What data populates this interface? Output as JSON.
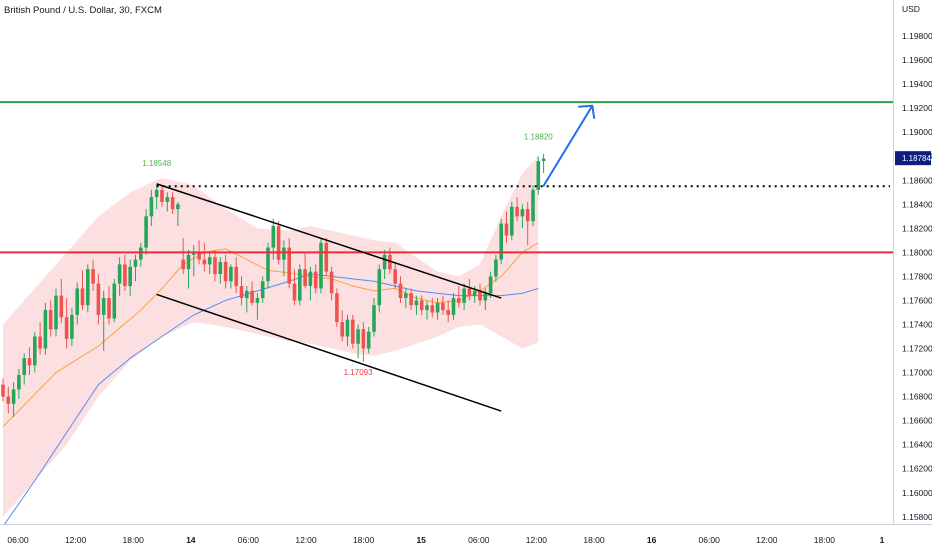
{
  "header": {
    "title": "British Pound / U.S. Dollar, 30, FXCM"
  },
  "colors": {
    "bull": "#26a65b",
    "bear": "#ef5350",
    "band_fill": "#fbd5d7",
    "ma_short": "#f7a440",
    "ma_long": "#4f8ef5",
    "resistance": "#2ea043",
    "support": "#e8303d",
    "arrow": "#1f6fe5",
    "price_tag": "#0d1e80"
  },
  "chart_data": {
    "type": "candlestick",
    "symbol": "British Pound / U.S. Dollar",
    "interval": "30",
    "source": "FXCM",
    "currency_label": "USD",
    "y_range": [
      1.1574,
      1.201
    ],
    "y_ticks": [
      "1.19800",
      "1.19600",
      "1.19400",
      "1.19200",
      "1.19000",
      "1.18800",
      "1.18600",
      "1.18400",
      "1.18200",
      "1.18000",
      "1.17800",
      "1.17600",
      "1.17400",
      "1.17200",
      "1.17000",
      "1.16800",
      "1.16600",
      "1.16400",
      "1.16200",
      "1.16000",
      "1.15800"
    ],
    "x_ticks": [
      "06:00",
      "12:00",
      "18:00",
      "14",
      "06:00",
      "12:00",
      "18:00",
      "15",
      "06:00",
      "12:00",
      "18:00",
      "16",
      "06:00",
      "12:00",
      "18:00",
      "1"
    ],
    "current_price": "1.18784",
    "annotations": {
      "high_label": "1.18548",
      "low_label": "1.17093",
      "last_high_label": "1.18820"
    },
    "levels": {
      "resistance": 1.1925,
      "support": 1.18,
      "breakout_dotted": 1.1855
    },
    "candles": [
      [
        1.169,
        1.1695,
        1.1676,
        1.168
      ],
      [
        1.168,
        1.1688,
        1.1666,
        1.1674
      ],
      [
        1.1674,
        1.1692,
        1.1663,
        1.1686
      ],
      [
        1.1686,
        1.1703,
        1.1678,
        1.1698
      ],
      [
        1.1698,
        1.1716,
        1.169,
        1.1712
      ],
      [
        1.1712,
        1.1721,
        1.1698,
        1.1706
      ],
      [
        1.1706,
        1.1734,
        1.17,
        1.173
      ],
      [
        1.173,
        1.1742,
        1.1715,
        1.172
      ],
      [
        1.172,
        1.1758,
        1.1715,
        1.1752
      ],
      [
        1.1752,
        1.176,
        1.173,
        1.1736
      ],
      [
        1.1736,
        1.177,
        1.173,
        1.1764
      ],
      [
        1.1764,
        1.1778,
        1.1741,
        1.1746
      ],
      [
        1.1746,
        1.1762,
        1.172,
        1.1728
      ],
      [
        1.1728,
        1.1754,
        1.1722,
        1.1748
      ],
      [
        1.1748,
        1.1775,
        1.174,
        1.177
      ],
      [
        1.177,
        1.1785,
        1.1752,
        1.1756
      ],
      [
        1.1756,
        1.179,
        1.175,
        1.1786
      ],
      [
        1.1786,
        1.1794,
        1.1768,
        1.1774
      ],
      [
        1.1774,
        1.1782,
        1.174,
        1.1748
      ],
      [
        1.1748,
        1.1768,
        1.1718,
        1.1762
      ],
      [
        1.1762,
        1.1772,
        1.174,
        1.1745
      ],
      [
        1.1745,
        1.1778,
        1.1742,
        1.1774
      ],
      [
        1.1774,
        1.1796,
        1.1764,
        1.179
      ],
      [
        1.179,
        1.1798,
        1.1768,
        1.1772
      ],
      [
        1.1772,
        1.1794,
        1.1764,
        1.1788
      ],
      [
        1.1788,
        1.1798,
        1.1776,
        1.1794
      ],
      [
        1.1794,
        1.1808,
        1.1788,
        1.1804
      ],
      [
        1.1804,
        1.1836,
        1.1798,
        1.183
      ],
      [
        1.183,
        1.1852,
        1.1822,
        1.1846
      ],
      [
        1.1846,
        1.1857,
        1.1836,
        1.1852
      ],
      [
        1.1852,
        1.1856,
        1.1838,
        1.1842
      ],
      [
        1.1842,
        1.185,
        1.1834,
        1.1846
      ],
      [
        1.1846,
        1.185,
        1.1832,
        1.1836
      ],
      [
        1.1836,
        1.1842,
        1.1822,
        1.184
      ],
      [
        1.1794,
        1.1812,
        1.1782,
        1.1786
      ],
      [
        1.1786,
        1.1802,
        1.177,
        1.1798
      ],
      [
        1.1798,
        1.1806,
        1.178,
        1.18
      ],
      [
        1.18,
        1.181,
        1.179,
        1.1794
      ],
      [
        1.1794,
        1.1808,
        1.1784,
        1.179
      ],
      [
        1.179,
        1.18,
        1.1782,
        1.1796
      ],
      [
        1.1796,
        1.1802,
        1.1776,
        1.1782
      ],
      [
        1.1782,
        1.1796,
        1.1774,
        1.1792
      ],
      [
        1.1792,
        1.1798,
        1.177,
        1.1776
      ],
      [
        1.1776,
        1.179,
        1.177,
        1.1788
      ],
      [
        1.1788,
        1.1796,
        1.1766,
        1.1772
      ],
      [
        1.1772,
        1.178,
        1.1756,
        1.1762
      ],
      [
        1.1762,
        1.1772,
        1.175,
        1.1768
      ],
      [
        1.1768,
        1.1776,
        1.1756,
        1.1758
      ],
      [
        1.1758,
        1.1766,
        1.1744,
        1.1762
      ],
      [
        1.1762,
        1.178,
        1.1758,
        1.1776
      ],
      [
        1.1776,
        1.1808,
        1.177,
        1.1804
      ],
      [
        1.1804,
        1.1828,
        1.1794,
        1.1822
      ],
      [
        1.1822,
        1.1826,
        1.179,
        1.1794
      ],
      [
        1.1794,
        1.181,
        1.178,
        1.1804
      ],
      [
        1.1804,
        1.1812,
        1.177,
        1.1774
      ],
      [
        1.1774,
        1.1786,
        1.1756,
        1.176
      ],
      [
        1.176,
        1.179,
        1.1756,
        1.1786
      ],
      [
        1.1786,
        1.18,
        1.177,
        1.1772
      ],
      [
        1.1772,
        1.1788,
        1.176,
        1.1784
      ],
      [
        1.1784,
        1.179,
        1.1766,
        1.177
      ],
      [
        1.177,
        1.1812,
        1.1766,
        1.1808
      ],
      [
        1.1808,
        1.1812,
        1.178,
        1.1784
      ],
      [
        1.1784,
        1.1788,
        1.176,
        1.1766
      ],
      [
        1.1766,
        1.177,
        1.1738,
        1.1742
      ],
      [
        1.1742,
        1.1752,
        1.1726,
        1.173
      ],
      [
        1.173,
        1.1748,
        1.1722,
        1.1744
      ],
      [
        1.1744,
        1.1748,
        1.172,
        1.1724
      ],
      [
        1.1724,
        1.174,
        1.1712,
        1.1736
      ],
      [
        1.1736,
        1.1742,
        1.1709,
        1.172
      ],
      [
        1.172,
        1.1738,
        1.1716,
        1.1734
      ],
      [
        1.1734,
        1.1762,
        1.173,
        1.1756
      ],
      [
        1.1756,
        1.179,
        1.175,
        1.1786
      ],
      [
        1.1786,
        1.1802,
        1.1778,
        1.1798
      ],
      [
        1.1798,
        1.1804,
        1.1782,
        1.1786
      ],
      [
        1.1786,
        1.1792,
        1.177,
        1.1774
      ],
      [
        1.1774,
        1.178,
        1.1758,
        1.1762
      ],
      [
        1.1762,
        1.177,
        1.1754,
        1.1766
      ],
      [
        1.1766,
        1.177,
        1.1752,
        1.1756
      ],
      [
        1.1756,
        1.1764,
        1.1748,
        1.176
      ],
      [
        1.176,
        1.1764,
        1.1748,
        1.1752
      ],
      [
        1.1752,
        1.176,
        1.1744,
        1.1756
      ],
      [
        1.1756,
        1.1762,
        1.1746,
        1.175
      ],
      [
        1.175,
        1.1762,
        1.1744,
        1.1758
      ],
      [
        1.1758,
        1.1764,
        1.1748,
        1.1752
      ],
      [
        1.1752,
        1.176,
        1.1742,
        1.1748
      ],
      [
        1.1748,
        1.1766,
        1.1744,
        1.1762
      ],
      [
        1.1762,
        1.1772,
        1.1754,
        1.1758
      ],
      [
        1.1758,
        1.1774,
        1.1752,
        1.177
      ],
      [
        1.177,
        1.1778,
        1.176,
        1.1764
      ],
      [
        1.1764,
        1.1772,
        1.1758,
        1.1768
      ],
      [
        1.1768,
        1.1774,
        1.1756,
        1.176
      ],
      [
        1.176,
        1.177,
        1.1752,
        1.1766
      ],
      [
        1.1766,
        1.1784,
        1.1762,
        1.178
      ],
      [
        1.178,
        1.1798,
        1.1776,
        1.1794
      ],
      [
        1.1794,
        1.1828,
        1.179,
        1.1824
      ],
      [
        1.1824,
        1.1834,
        1.1808,
        1.1814
      ],
      [
        1.1814,
        1.1842,
        1.181,
        1.1838
      ],
      [
        1.1838,
        1.1846,
        1.1826,
        1.183
      ],
      [
        1.183,
        1.184,
        1.182,
        1.1836
      ],
      [
        1.1836,
        1.1842,
        1.1806,
        1.1826
      ],
      [
        1.1826,
        1.1856,
        1.1822,
        1.1852
      ],
      [
        1.1852,
        1.188,
        1.1848,
        1.1876
      ],
      [
        1.1876,
        1.1882,
        1.1866,
        1.1878
      ]
    ],
    "ma_short": [
      [
        0,
        1.1655
      ],
      [
        10,
        1.17
      ],
      [
        18,
        1.1722
      ],
      [
        26,
        1.1752
      ],
      [
        30,
        1.177
      ],
      [
        34,
        1.179
      ],
      [
        38,
        1.18
      ],
      [
        42,
        1.1803
      ],
      [
        46,
        1.1794
      ],
      [
        50,
        1.1785
      ],
      [
        54,
        1.1783
      ],
      [
        58,
        1.178
      ],
      [
        62,
        1.1778
      ],
      [
        66,
        1.1772
      ],
      [
        70,
        1.1768
      ],
      [
        74,
        1.177
      ],
      [
        78,
        1.1762
      ],
      [
        82,
        1.1758
      ],
      [
        86,
        1.176
      ],
      [
        90,
        1.1768
      ],
      [
        94,
        1.178
      ],
      [
        98,
        1.18
      ],
      [
        101,
        1.1808
      ]
    ],
    "ma_long": [
      [
        0,
        1.1572
      ],
      [
        6,
        1.161
      ],
      [
        12,
        1.165
      ],
      [
        18,
        1.169
      ],
      [
        24,
        1.1712
      ],
      [
        30,
        1.173
      ],
      [
        36,
        1.1748
      ],
      [
        42,
        1.176
      ],
      [
        48,
        1.1768
      ],
      [
        54,
        1.1776
      ],
      [
        58,
        1.1782
      ],
      [
        62,
        1.178
      ],
      [
        66,
        1.1778
      ],
      [
        70,
        1.1776
      ],
      [
        74,
        1.1772
      ],
      [
        78,
        1.1768
      ],
      [
        82,
        1.1766
      ],
      [
        86,
        1.1764
      ],
      [
        90,
        1.1764
      ],
      [
        94,
        1.1764
      ],
      [
        98,
        1.1766
      ],
      [
        101,
        1.177
      ]
    ],
    "band_upper": [
      [
        0,
        1.174
      ],
      [
        6,
        1.177
      ],
      [
        12,
        1.18
      ],
      [
        18,
        1.183
      ],
      [
        24,
        1.185
      ],
      [
        30,
        1.1862
      ],
      [
        36,
        1.1856
      ],
      [
        42,
        1.1836
      ],
      [
        48,
        1.182
      ],
      [
        54,
        1.1818
      ],
      [
        58,
        1.1822
      ],
      [
        62,
        1.1818
      ],
      [
        66,
        1.1814
      ],
      [
        70,
        1.181
      ],
      [
        74,
        1.1808
      ],
      [
        78,
        1.1796
      ],
      [
        82,
        1.1784
      ],
      [
        86,
        1.178
      ],
      [
        90,
        1.179
      ],
      [
        94,
        1.183
      ],
      [
        98,
        1.1866
      ],
      [
        101,
        1.188
      ]
    ],
    "band_lower": [
      [
        0,
        1.158
      ],
      [
        6,
        1.161
      ],
      [
        12,
        1.164
      ],
      [
        18,
        1.168
      ],
      [
        24,
        1.171
      ],
      [
        30,
        1.173
      ],
      [
        36,
        1.1742
      ],
      [
        42,
        1.1738
      ],
      [
        48,
        1.1732
      ],
      [
        54,
        1.1726
      ],
      [
        58,
        1.1724
      ],
      [
        62,
        1.172
      ],
      [
        66,
        1.1716
      ],
      [
        70,
        1.1714
      ],
      [
        74,
        1.1718
      ],
      [
        78,
        1.1724
      ],
      [
        82,
        1.173
      ],
      [
        86,
        1.1738
      ],
      [
        90,
        1.174
      ],
      [
        94,
        1.173
      ],
      [
        98,
        1.172
      ],
      [
        101,
        1.1725
      ]
    ],
    "channel_upper": [
      [
        29,
        1.1857
      ],
      [
        94,
        1.1762
      ]
    ],
    "channel_lower": [
      [
        29,
        1.1765
      ],
      [
        94,
        1.1668
      ]
    ]
  }
}
